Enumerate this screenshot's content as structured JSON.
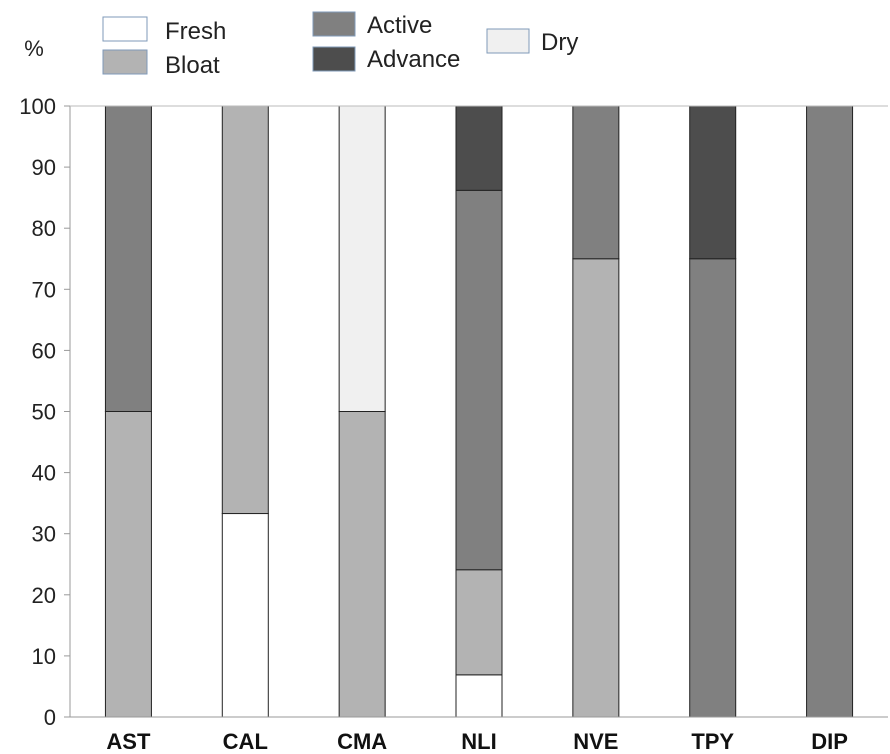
{
  "chart_data": {
    "type": "bar",
    "stacked": true,
    "ylabel": "%",
    "ylim": [
      0,
      100
    ],
    "yticks": [
      0,
      10,
      20,
      30,
      40,
      50,
      60,
      70,
      80,
      90,
      100
    ],
    "grid": false,
    "legend_position": "top",
    "categories": [
      "AST",
      "CAL",
      "CMA",
      "NLI",
      "NVE",
      "TPY",
      "DIP"
    ],
    "series": [
      {
        "name": "Fresh",
        "color": "#ffffff",
        "values": [
          0,
          33.3,
          0,
          6.9,
          0,
          0,
          0
        ]
      },
      {
        "name": "Bloat",
        "color": "#b3b3b3",
        "values": [
          50,
          66.7,
          50,
          17.2,
          75,
          0,
          0
        ]
      },
      {
        "name": "Active",
        "color": "#808080",
        "values": [
          50,
          0,
          0,
          62.1,
          25,
          75,
          100
        ]
      },
      {
        "name": "Advance",
        "color": "#4d4d4d",
        "values": [
          0,
          0,
          0,
          13.8,
          0,
          25,
          0
        ]
      },
      {
        "name": "Dry",
        "color": "#f0f0f0",
        "values": [
          0,
          0,
          50,
          0,
          0,
          0,
          0
        ]
      }
    ]
  }
}
